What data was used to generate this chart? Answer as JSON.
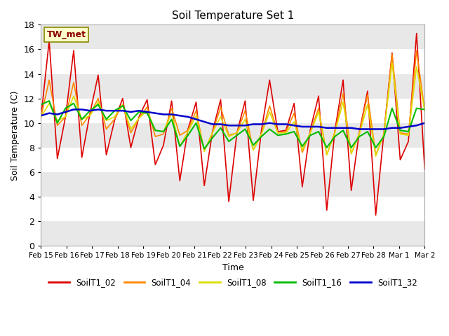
{
  "title": "Soil Temperature Set 1",
  "xlabel": "Time",
  "ylabel": "Soil Temperature (C)",
  "ylim": [
    0,
    18
  ],
  "yticks": [
    0,
    2,
    4,
    6,
    8,
    10,
    12,
    14,
    16,
    18
  ],
  "annotation_text": "TW_met",
  "annotation_color": "#880000",
  "annotation_bg": "#ffffcc",
  "annotation_border": "#888800",
  "series": {
    "SoilT1_02": {
      "color": "#dd0000",
      "lw": 1.2,
      "values": [
        10.5,
        16.7,
        7.1,
        10.5,
        15.9,
        7.2,
        10.8,
        13.9,
        7.4,
        10.2,
        12.0,
        8.0,
        10.5,
        11.9,
        6.6,
        8.2,
        11.8,
        5.3,
        9.5,
        11.7,
        4.9,
        9.3,
        11.9,
        3.6,
        9.2,
        11.8,
        3.7,
        9.4,
        13.5,
        9.3,
        9.4,
        11.6,
        4.8,
        9.5,
        12.2,
        2.9,
        9.4,
        13.5,
        4.5,
        9.3,
        12.6,
        2.5,
        9.2,
        15.7,
        7.0,
        8.5,
        17.3,
        6.2
      ]
    },
    "SoilT1_04": {
      "color": "#ff8800",
      "lw": 1.2,
      "values": [
        10.5,
        13.5,
        9.8,
        10.5,
        13.3,
        9.8,
        10.7,
        12.0,
        9.5,
        10.3,
        11.5,
        9.2,
        10.4,
        11.3,
        8.9,
        9.1,
        11.2,
        9.0,
        9.4,
        11.0,
        7.7,
        9.2,
        11.3,
        9.0,
        9.2,
        11.0,
        7.8,
        9.1,
        11.4,
        9.2,
        9.3,
        10.8,
        7.6,
        9.3,
        11.2,
        7.4,
        9.3,
        12.4,
        7.5,
        9.2,
        12.3,
        7.4,
        9.1,
        15.6,
        9.2,
        9.1,
        15.9,
        11.0
      ]
    },
    "SoilT1_08": {
      "color": "#dddd00",
      "lw": 1.2,
      "values": [
        10.5,
        11.6,
        10.2,
        10.5,
        12.2,
        10.3,
        10.6,
        11.7,
        10.2,
        10.5,
        11.5,
        9.5,
        10.4,
        11.0,
        9.4,
        9.3,
        10.8,
        8.1,
        9.3,
        10.6,
        7.7,
        9.2,
        10.5,
        8.9,
        9.2,
        10.3,
        7.8,
        9.1,
        10.9,
        9.2,
        9.2,
        10.1,
        7.8,
        9.2,
        10.9,
        7.4,
        9.2,
        11.7,
        7.5,
        9.1,
        11.5,
        7.3,
        9.1,
        14.9,
        9.1,
        9.0,
        14.6,
        11.0
      ]
    },
    "SoilT1_16": {
      "color": "#00bb00",
      "lw": 1.5,
      "values": [
        11.5,
        11.8,
        10.0,
        11.2,
        11.6,
        10.3,
        11.0,
        11.5,
        10.3,
        11.0,
        11.4,
        10.2,
        10.9,
        10.8,
        9.4,
        9.3,
        10.3,
        8.1,
        9.0,
        10.0,
        7.9,
        8.8,
        9.6,
        8.5,
        9.0,
        9.5,
        8.2,
        8.9,
        9.5,
        9.0,
        9.1,
        9.3,
        8.1,
        9.0,
        9.3,
        8.0,
        8.9,
        9.4,
        8.0,
        8.9,
        9.3,
        8.0,
        8.9,
        11.2,
        9.4,
        9.3,
        11.2,
        11.1
      ]
    },
    "SoilT1_32": {
      "color": "#0000cc",
      "lw": 1.8,
      "values": [
        10.6,
        10.8,
        10.7,
        10.9,
        11.1,
        11.1,
        11.0,
        11.1,
        11.0,
        11.0,
        11.0,
        10.9,
        11.0,
        10.9,
        10.8,
        10.7,
        10.7,
        10.6,
        10.5,
        10.3,
        10.1,
        9.9,
        9.9,
        9.8,
        9.8,
        9.8,
        9.9,
        9.9,
        10.0,
        9.9,
        9.9,
        9.8,
        9.7,
        9.7,
        9.7,
        9.6,
        9.6,
        9.6,
        9.6,
        9.5,
        9.5,
        9.5,
        9.5,
        9.6,
        9.6,
        9.7,
        9.8,
        10.0
      ]
    }
  },
  "x_tick_labels": [
    "Feb 15",
    "Feb 16",
    "Feb 17",
    "Feb 18",
    "Feb 19",
    "Feb 20",
    "Feb 21",
    "Feb 22",
    "Feb 23",
    "Feb 24",
    "Feb 25",
    "Feb 26",
    "Feb 27",
    "Feb 28",
    "Mar 1",
    "Mar 2"
  ],
  "fig_bg_color": "#ffffff",
  "plot_bg_color": "#ffffff",
  "stripe_light": "#e8e8e8",
  "stripe_dark": "#ffffff"
}
